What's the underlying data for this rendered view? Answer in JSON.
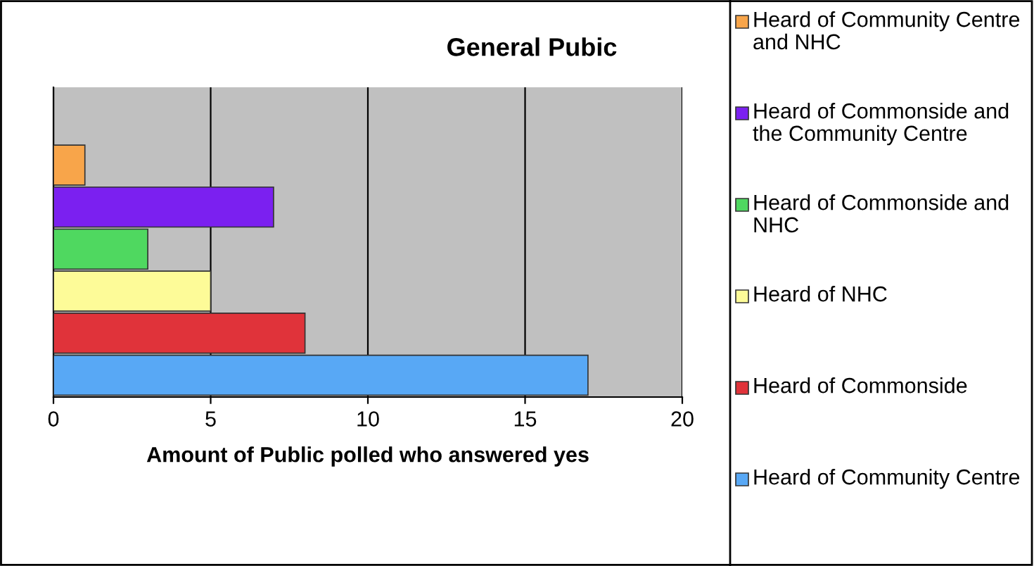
{
  "chart_data": {
    "type": "bar",
    "orientation": "horizontal",
    "stacked": true,
    "title": "General Pubic",
    "xlabel": "Amount of Public polled who answered yes",
    "categories": [
      null,
      null,
      null,
      null,
      null,
      null
    ],
    "series": [
      {
        "name": "Heard of Community Centre and NHC",
        "color": "#f8a54a",
        "values": [
          1,
          null,
          null,
          null,
          null,
          null
        ]
      },
      {
        "name": "Heard of Commonside and the Community Centre",
        "color": "#7b20f0",
        "values": [
          null,
          7,
          null,
          null,
          null,
          null
        ]
      },
      {
        "name": "Heard of Commonside and NHC",
        "color": "#4fd860",
        "values": [
          null,
          null,
          3,
          null,
          null,
          null
        ]
      },
      {
        "name": "Heard of NHC",
        "color": "#fdfb98",
        "values": [
          null,
          null,
          null,
          5,
          null,
          null
        ]
      },
      {
        "name": "Heard of Commonside",
        "color": "#e0333a",
        "values": [
          null,
          null,
          null,
          null,
          8,
          null
        ]
      },
      {
        "name": "Heard of Community Centre",
        "color": "#58a8f5",
        "values": [
          null,
          null,
          null,
          null,
          null,
          17
        ]
      }
    ],
    "xlim": [
      0,
      20
    ],
    "xticks": [
      0,
      5,
      10,
      15,
      20
    ],
    "grid": "x",
    "legend": "right",
    "tick_labels": "x"
  }
}
